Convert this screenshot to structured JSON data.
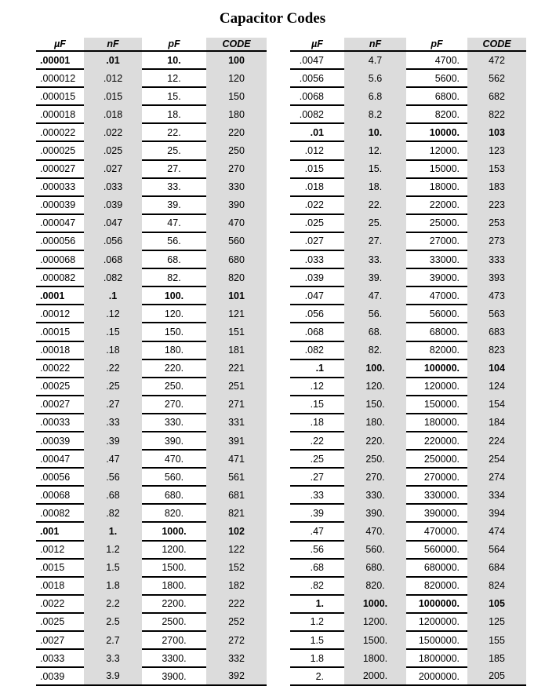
{
  "title": "Capacitor Codes",
  "headers": {
    "uf": "µF",
    "nf": "nF",
    "pf": "pF",
    "code": "CODE"
  },
  "left": [
    {
      "uf": ".00001",
      "nf": ".01",
      "pf": "10.",
      "code": "100",
      "bold": true
    },
    {
      "uf": ".000012",
      "nf": ".012",
      "pf": "12.",
      "code": "120"
    },
    {
      "uf": ".000015",
      "nf": ".015",
      "pf": "15.",
      "code": "150"
    },
    {
      "uf": ".000018",
      "nf": ".018",
      "pf": "18.",
      "code": "180"
    },
    {
      "uf": ".000022",
      "nf": ".022",
      "pf": "22.",
      "code": "220"
    },
    {
      "uf": ".000025",
      "nf": ".025",
      "pf": "25.",
      "code": "250"
    },
    {
      "uf": ".000027",
      "nf": ".027",
      "pf": "27.",
      "code": "270"
    },
    {
      "uf": ".000033",
      "nf": ".033",
      "pf": "33.",
      "code": "330"
    },
    {
      "uf": ".000039",
      "nf": ".039",
      "pf": "39.",
      "code": "390"
    },
    {
      "uf": ".000047",
      "nf": ".047",
      "pf": "47.",
      "code": "470"
    },
    {
      "uf": ".000056",
      "nf": ".056",
      "pf": "56.",
      "code": "560"
    },
    {
      "uf": ".000068",
      "nf": ".068",
      "pf": "68.",
      "code": "680"
    },
    {
      "uf": ".000082",
      "nf": ".082",
      "pf": "82.",
      "code": "820"
    },
    {
      "uf": ".0001",
      "nf": ".1",
      "pf": "100.",
      "code": "101",
      "bold": true
    },
    {
      "uf": ".00012",
      "nf": ".12",
      "pf": "120.",
      "code": "121"
    },
    {
      "uf": ".00015",
      "nf": ".15",
      "pf": "150.",
      "code": "151"
    },
    {
      "uf": ".00018",
      "nf": ".18",
      "pf": "180.",
      "code": "181"
    },
    {
      "uf": ".00022",
      "nf": ".22",
      "pf": "220.",
      "code": "221"
    },
    {
      "uf": ".00025",
      "nf": ".25",
      "pf": "250.",
      "code": "251"
    },
    {
      "uf": ".00027",
      "nf": ".27",
      "pf": "270.",
      "code": "271"
    },
    {
      "uf": ".00033",
      "nf": ".33",
      "pf": "330.",
      "code": "331"
    },
    {
      "uf": ".00039",
      "nf": ".39",
      "pf": "390.",
      "code": "391"
    },
    {
      "uf": ".00047",
      "nf": ".47",
      "pf": "470.",
      "code": "471"
    },
    {
      "uf": ".00056",
      "nf": ".56",
      "pf": "560.",
      "code": "561"
    },
    {
      "uf": ".00068",
      "nf": ".68",
      "pf": "680.",
      "code": "681"
    },
    {
      "uf": ".00082",
      "nf": ".82",
      "pf": "820.",
      "code": "821"
    },
    {
      "uf": ".001",
      "nf": "1.",
      "pf": "1000.",
      "code": "102",
      "bold": true
    },
    {
      "uf": ".0012",
      "nf": "1.2",
      "pf": "1200.",
      "code": "122"
    },
    {
      "uf": ".0015",
      "nf": "1.5",
      "pf": "1500.",
      "code": "152"
    },
    {
      "uf": ".0018",
      "nf": "1.8",
      "pf": "1800.",
      "code": "182"
    },
    {
      "uf": ".0022",
      "nf": "2.2",
      "pf": "2200.",
      "code": "222"
    },
    {
      "uf": ".0025",
      "nf": "2.5",
      "pf": "2500.",
      "code": "252"
    },
    {
      "uf": ".0027",
      "nf": "2.7",
      "pf": "2700.",
      "code": "272"
    },
    {
      "uf": ".0033",
      "nf": "3.3",
      "pf": "3300.",
      "code": "332"
    },
    {
      "uf": ".0039",
      "nf": "3.9",
      "pf": "3900.",
      "code": "392"
    }
  ],
  "right": [
    {
      "uf": ".0047",
      "nf": "4.7",
      "pf": "4700.",
      "code": "472"
    },
    {
      "uf": ".0056",
      "nf": "5.6",
      "pf": "5600.",
      "code": "562"
    },
    {
      "uf": ".0068",
      "nf": "6.8",
      "pf": "6800.",
      "code": "682"
    },
    {
      "uf": ".0082",
      "nf": "8.2",
      "pf": "8200.",
      "code": "822"
    },
    {
      "uf": ".01",
      "nf": "10.",
      "pf": "10000.",
      "code": "103",
      "bold": true
    },
    {
      "uf": ".012",
      "nf": "12.",
      "pf": "12000.",
      "code": "123"
    },
    {
      "uf": ".015",
      "nf": "15.",
      "pf": "15000.",
      "code": "153"
    },
    {
      "uf": ".018",
      "nf": "18.",
      "pf": "18000.",
      "code": "183"
    },
    {
      "uf": ".022",
      "nf": "22.",
      "pf": "22000.",
      "code": "223"
    },
    {
      "uf": ".025",
      "nf": "25.",
      "pf": "25000.",
      "code": "253"
    },
    {
      "uf": ".027",
      "nf": "27.",
      "pf": "27000.",
      "code": "273"
    },
    {
      "uf": ".033",
      "nf": "33.",
      "pf": "33000.",
      "code": "333"
    },
    {
      "uf": ".039",
      "nf": "39.",
      "pf": "39000.",
      "code": "393"
    },
    {
      "uf": ".047",
      "nf": "47.",
      "pf": "47000.",
      "code": "473"
    },
    {
      "uf": ".056",
      "nf": "56.",
      "pf": "56000.",
      "code": "563"
    },
    {
      "uf": ".068",
      "nf": "68.",
      "pf": "68000.",
      "code": "683"
    },
    {
      "uf": ".082",
      "nf": "82.",
      "pf": "82000.",
      "code": "823"
    },
    {
      "uf": ".1",
      "nf": "100.",
      "pf": "100000.",
      "code": "104",
      "bold": true
    },
    {
      "uf": ".12",
      "nf": "120.",
      "pf": "120000.",
      "code": "124"
    },
    {
      "uf": ".15",
      "nf": "150.",
      "pf": "150000.",
      "code": "154"
    },
    {
      "uf": ".18",
      "nf": "180.",
      "pf": "180000.",
      "code": "184"
    },
    {
      "uf": ".22",
      "nf": "220.",
      "pf": "220000.",
      "code": "224"
    },
    {
      "uf": ".25",
      "nf": "250.",
      "pf": "250000.",
      "code": "254"
    },
    {
      "uf": ".27",
      "nf": "270.",
      "pf": "270000.",
      "code": "274"
    },
    {
      "uf": ".33",
      "nf": "330.",
      "pf": "330000.",
      "code": "334"
    },
    {
      "uf": ".39",
      "nf": "390.",
      "pf": "390000.",
      "code": "394"
    },
    {
      "uf": ".47",
      "nf": "470.",
      "pf": "470000.",
      "code": "474"
    },
    {
      "uf": ".56",
      "nf": "560.",
      "pf": "560000.",
      "code": "564"
    },
    {
      "uf": ".68",
      "nf": "680.",
      "pf": "680000.",
      "code": "684"
    },
    {
      "uf": ".82",
      "nf": "820.",
      "pf": "820000.",
      "code": "824"
    },
    {
      "uf": "1.",
      "nf": "1000.",
      "pf": "1000000.",
      "code": "105",
      "bold": true
    },
    {
      "uf": "1.2",
      "nf": "1200.",
      "pf": "1200000.",
      "code": "125"
    },
    {
      "uf": "1.5",
      "nf": "1500.",
      "pf": "1500000.",
      "code": "155"
    },
    {
      "uf": "1.8",
      "nf": "1800.",
      "pf": "1800000.",
      "code": "185"
    },
    {
      "uf": "2.",
      "nf": "2000.",
      "pf": "2000000.",
      "code": "205"
    }
  ]
}
